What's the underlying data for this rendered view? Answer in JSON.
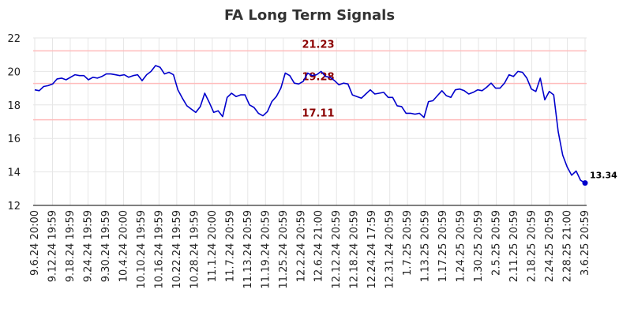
{
  "chart_data": {
    "type": "line",
    "title": "FA Long Term Signals",
    "xlabel": "",
    "ylabel": "",
    "ylim": [
      12,
      22
    ],
    "y_ticks": [
      12,
      14,
      16,
      18,
      20,
      22
    ],
    "x_tick_labels": [
      "9.6.24 20:00",
      "9.12.24 19:59",
      "9.18.24 19:59",
      "9.24.24 19:59",
      "9.30.24 19:59",
      "10.4.24 20:00",
      "10.10.24 19:59",
      "10.16.24 19:59",
      "10.22.24 19:59",
      "10.28.24 19:59",
      "11.1.24 20:00",
      "11.7.24 20:59",
      "11.13.24 20:59",
      "11.19.24 20:59",
      "11.25.24 20:59",
      "12.2.24 20:59",
      "12.6.24 21:00",
      "12.12.24 20:59",
      "12.18.24 20:59",
      "12.24.24 17:59",
      "12.31.24 20:59",
      "1.7.25 20:59",
      "1.13.25 20:59",
      "1.17.25 20:59",
      "1.24.25 20:59",
      "1.30.25 20:59",
      "2.5.25 20:59",
      "2.11.25 20:59",
      "2.18.25 20:59",
      "2.24.25 20:59",
      "2.28.25 21:00",
      "3.6.25 20:59"
    ],
    "grid": true,
    "line_color": "#0000cc",
    "reference_lines": [
      {
        "value": 21.23,
        "label": "21.23",
        "line_color": "#ffbbbb",
        "label_color": "#8b0000"
      },
      {
        "value": 19.28,
        "label": "19.28",
        "line_color": "#ffbbbb",
        "label_color": "#8b0000"
      },
      {
        "value": 17.11,
        "label": "17.11",
        "line_color": "#ffbbbb",
        "label_color": "#8b0000"
      }
    ],
    "last_point_label": "13.34",
    "series": [
      {
        "values": [
          18.9,
          18.85,
          19.1,
          19.15,
          19.25,
          19.55,
          19.6,
          19.5,
          19.65,
          19.8,
          19.75,
          19.75,
          19.5,
          19.65,
          19.6,
          19.7,
          19.85,
          19.85,
          19.8,
          19.75,
          19.8,
          19.65,
          19.75,
          19.8,
          19.45,
          19.8,
          20.0,
          20.35,
          20.25,
          19.85,
          19.95,
          19.8,
          18.9,
          18.4,
          17.95,
          17.75,
          17.55,
          17.9,
          18.7,
          18.15,
          17.55,
          17.65,
          17.3,
          18.45,
          18.7,
          18.5,
          18.6,
          18.6,
          18.0,
          17.85,
          17.5,
          17.35,
          17.6,
          18.2,
          18.5,
          19.0,
          19.9,
          19.75,
          19.3,
          19.25,
          19.4,
          19.9,
          19.75,
          19.8,
          20.0,
          19.7,
          19.65,
          19.45,
          19.2,
          19.3,
          19.25,
          18.6,
          18.5,
          18.4,
          18.65,
          18.9,
          18.65,
          18.7,
          18.75,
          18.45,
          18.45,
          17.95,
          17.9,
          17.5,
          17.5,
          17.45,
          17.5,
          17.25,
          18.2,
          18.25,
          18.55,
          18.85,
          18.55,
          18.45,
          18.9,
          18.95,
          18.85,
          18.65,
          18.75,
          18.9,
          18.85,
          19.05,
          19.3,
          19.0,
          19.0,
          19.3,
          19.8,
          19.7,
          20.0,
          19.95,
          19.6,
          18.95,
          18.8,
          19.6,
          18.3,
          18.8,
          18.6,
          16.4,
          15.0,
          14.3,
          13.8,
          14.05,
          13.5,
          13.34
        ]
      }
    ]
  }
}
